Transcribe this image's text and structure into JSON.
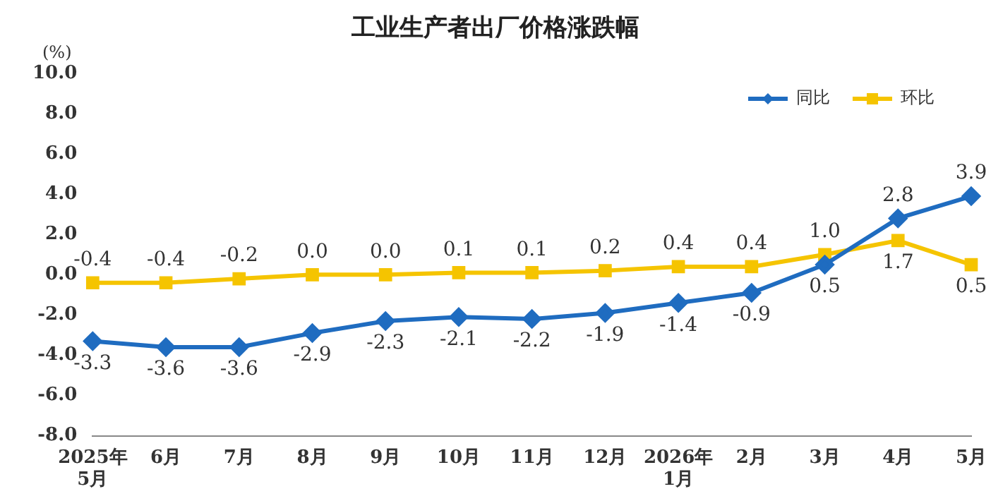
{
  "chart_data": {
    "type": "line",
    "title": "工业生产者出厂价格涨跌幅",
    "ylabel": "(%)",
    "categories": [
      "2025年\n5月",
      "6月",
      "7月",
      "8月",
      "9月",
      "10月",
      "11月",
      "12月",
      "2026年\n1月",
      "2月",
      "3月",
      "4月",
      "5月"
    ],
    "series": [
      {
        "name": "同比",
        "color": "#1f6cc0",
        "marker": "diamond",
        "values": [
          -3.3,
          -3.6,
          -3.6,
          -2.9,
          -2.3,
          -2.1,
          -2.2,
          -1.9,
          -1.4,
          -0.9,
          0.5,
          2.8,
          3.9
        ],
        "value_labels": [
          "-3.3",
          "-3.6",
          "-3.6",
          "-2.9",
          "-2.3",
          "-2.1",
          "-2.2",
          "-1.9",
          "-1.4",
          "-0.9",
          "0.5",
          "2.8",
          "3.9"
        ]
      },
      {
        "name": "环比",
        "color": "#f5c400",
        "marker": "square",
        "values": [
          -0.4,
          -0.4,
          -0.2,
          0.0,
          0.0,
          0.1,
          0.1,
          0.2,
          0.4,
          0.4,
          1.0,
          1.7,
          0.5
        ],
        "value_labels": [
          "-0.4",
          "-0.4",
          "-0.2",
          "0.0",
          "0.0",
          "0.1",
          "0.1",
          "0.2",
          "0.4",
          "0.4",
          "1.0",
          "1.7",
          "0.5"
        ]
      }
    ],
    "ylim": [
      -8.0,
      10.0
    ],
    "yticks": [
      {
        "value": -8,
        "label": "-8.0"
      },
      {
        "value": -6,
        "label": "-6.0"
      },
      {
        "value": -4,
        "label": "-4.0"
      },
      {
        "value": -2,
        "label": "-2.0"
      },
      {
        "value": 0,
        "label": "0.0"
      },
      {
        "value": 2,
        "label": "2.0"
      },
      {
        "value": 4,
        "label": "4.0"
      },
      {
        "value": 6,
        "label": "6.0"
      },
      {
        "value": 8,
        "label": "8.0"
      },
      {
        "value": 10,
        "label": "10.0"
      }
    ],
    "grid": false,
    "legend": "top right",
    "line_style": "solid"
  }
}
